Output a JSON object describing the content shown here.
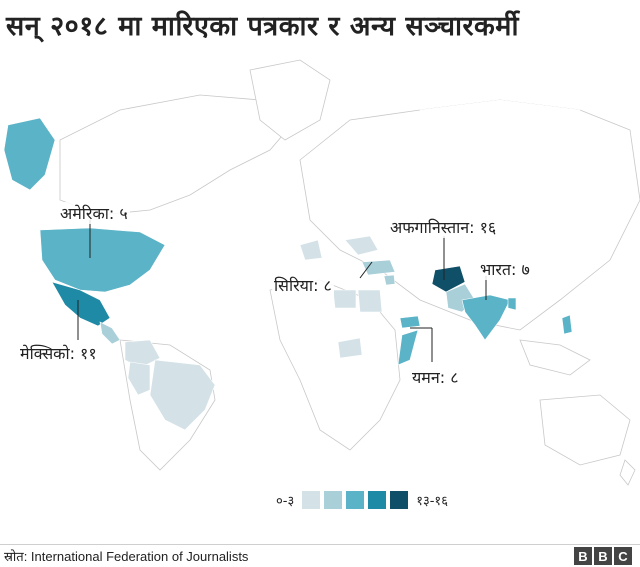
{
  "title": "सन् २०१८ मा मारिएका पत्रकार र अन्य सञ्चारकर्मी",
  "callouts": {
    "america": "अमेरिका: ५",
    "mexico": "मेक्सिको: ११",
    "syria": "सिरिया: ८",
    "afghanistan": "अफगानिस्तान: १६",
    "india": "भारत: ७",
    "yemen": "यमन: ८"
  },
  "legend": {
    "min_label": "०-३",
    "max_label": "१३-१६",
    "colors": [
      "#d4e2e8",
      "#a9cfd9",
      "#5bb3c7",
      "#1f8aa5",
      "#0f5068"
    ]
  },
  "colors": {
    "ocean": "#ffffff",
    "land_border": "#c8c8c8",
    "no_data": "#ffffff"
  },
  "source": "स्रोत: International Federation of Journalists",
  "brand": [
    "B",
    "B",
    "C"
  ]
}
